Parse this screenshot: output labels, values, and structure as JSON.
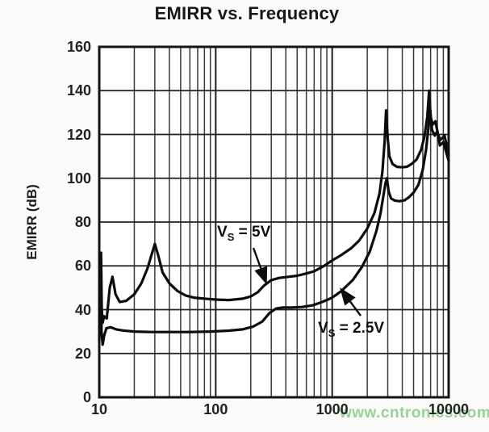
{
  "title": "EMIRR vs. Frequency",
  "watermark": {
    "text": "www.cntronics.com",
    "color": "#7dc57d"
  },
  "colors": {
    "curve": "#0c0c0c",
    "grid_major": "#1f1f1f",
    "grid_minor": "#3a3a3a",
    "frame": "#141414",
    "background": "#ffffff"
  },
  "annotations": {
    "v5": {
      "pre": "V",
      "sub": "S",
      "post": " = 5V"
    },
    "v25": {
      "pre": "V",
      "sub": "S",
      "post": " = 2.5V"
    }
  },
  "chart_data": {
    "type": "line",
    "title": "EMIRR vs. Frequency",
    "xlabel": "",
    "ylabel": "EMIRR (dB)",
    "x_scale": "log",
    "xlim": [
      10,
      10000
    ],
    "ylim": [
      0,
      160
    ],
    "x_ticks": [
      10,
      100,
      1000,
      10000
    ],
    "x_tick_labels": [
      "10",
      "100",
      "1000",
      "10000"
    ],
    "y_ticks": [
      0,
      20,
      40,
      60,
      80,
      100,
      120,
      140,
      160
    ],
    "grid": "log minor gridlines on x, 20 dB gridlines on y",
    "legend_position": "inline-annotations",
    "series": [
      {
        "name": "VS = 5V",
        "x": [
          10,
          10.2,
          10.35,
          10.5,
          10.7,
          11,
          11.6,
          12.3,
          13,
          13.8,
          15,
          17,
          20,
          23,
          26,
          28.5,
          30,
          32,
          35,
          40,
          47,
          55,
          65,
          80,
          100,
          130,
          170,
          200,
          230,
          260,
          300,
          350,
          420,
          500,
          600,
          700,
          850,
          1000,
          1200,
          1450,
          1700,
          2000,
          2300,
          2550,
          2700,
          2820,
          2900,
          3000,
          3100,
          3300,
          3600,
          4000,
          4400,
          4800,
          5300,
          5800,
          6200,
          6550,
          6800,
          7000,
          7300,
          7700,
          8100,
          8500,
          9200,
          10000
        ],
        "y": [
          26,
          60,
          66,
          40,
          34,
          37,
          36,
          50,
          55,
          47,
          43.5,
          44,
          47,
          52,
          59,
          66,
          70,
          65,
          57,
          52,
          48.5,
          46.5,
          45.5,
          45,
          44.6,
          44.4,
          45,
          46,
          48,
          51,
          53.5,
          54.5,
          55,
          55.5,
          56.5,
          57.5,
          60,
          62.5,
          65,
          68,
          71.5,
          77,
          84,
          93,
          103,
          117,
          131,
          118,
          110,
          106.5,
          105.2,
          105,
          105.3,
          106.5,
          108.5,
          113,
          119,
          128,
          140,
          128,
          124.5,
          126,
          120,
          117.5,
          119.5,
          111
        ]
      },
      {
        "name": "VS = 2.5V",
        "x": [
          10,
          10.15,
          10.3,
          10.45,
          10.7,
          11,
          11.5,
          12.5,
          14,
          16,
          20,
          28,
          40,
          60,
          90,
          130,
          170,
          210,
          250,
          290,
          330,
          380,
          450,
          550,
          680,
          820,
          1000,
          1200,
          1500,
          1800,
          2100,
          2400,
          2600,
          2750,
          2870,
          2950,
          3050,
          3200,
          3450,
          3800,
          4200,
          4600,
          5000,
          5500,
          6000,
          6400,
          6700,
          6950,
          7200,
          7600,
          8000,
          8400,
          9000,
          10000
        ],
        "y": [
          31,
          50,
          62,
          30,
          24,
          28,
          31.5,
          32,
          31,
          30.5,
          30,
          29.8,
          29.8,
          29.8,
          30,
          30.4,
          31,
          32.3,
          34.5,
          38.5,
          40.5,
          41,
          41,
          41.2,
          42,
          43.5,
          45.5,
          48.5,
          53.5,
          59.5,
          66.5,
          76,
          84,
          92,
          98,
          100,
          94,
          90.8,
          89.8,
          89.5,
          90,
          91.5,
          93.5,
          97,
          104,
          113,
          123,
          131,
          122,
          119.5,
          121.5,
          115,
          116.5,
          108
        ]
      }
    ]
  }
}
